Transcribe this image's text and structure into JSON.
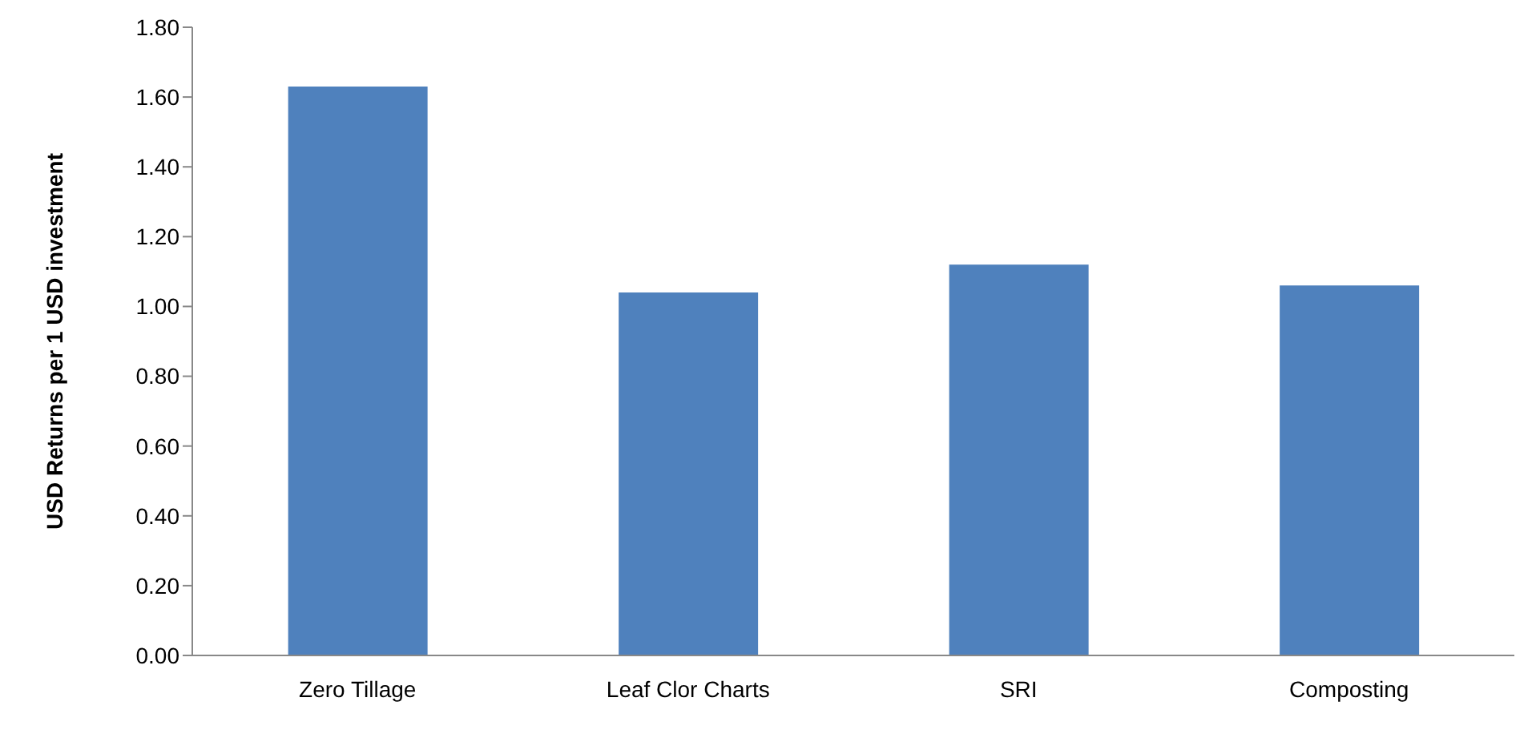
{
  "chart_data": {
    "type": "bar",
    "ylabel": "USD Returns per 1 USD investment",
    "categories": [
      "Zero Tillage",
      "Leaf Clor Charts",
      "SRI",
      "Composting"
    ],
    "values": [
      1.63,
      1.04,
      1.12,
      1.06
    ],
    "color": "#4f81bd",
    "ylim": [
      0,
      1.8
    ],
    "yticks": [
      {
        "value": 0,
        "label": "0.00"
      },
      {
        "value": 0.2,
        "label": "0.20"
      },
      {
        "value": 0.4,
        "label": "0.40"
      },
      {
        "value": 0.6,
        "label": "0.60"
      },
      {
        "value": 0.8,
        "label": "0.80"
      },
      {
        "value": 1,
        "label": "1.00"
      },
      {
        "value": 1.2,
        "label": "1.20"
      },
      {
        "value": 1.4,
        "label": "1.40"
      },
      {
        "value": 1.6,
        "label": "1.60"
      },
      {
        "value": 1.8,
        "label": "1.80"
      }
    ],
    "grid": false,
    "legend": false
  }
}
